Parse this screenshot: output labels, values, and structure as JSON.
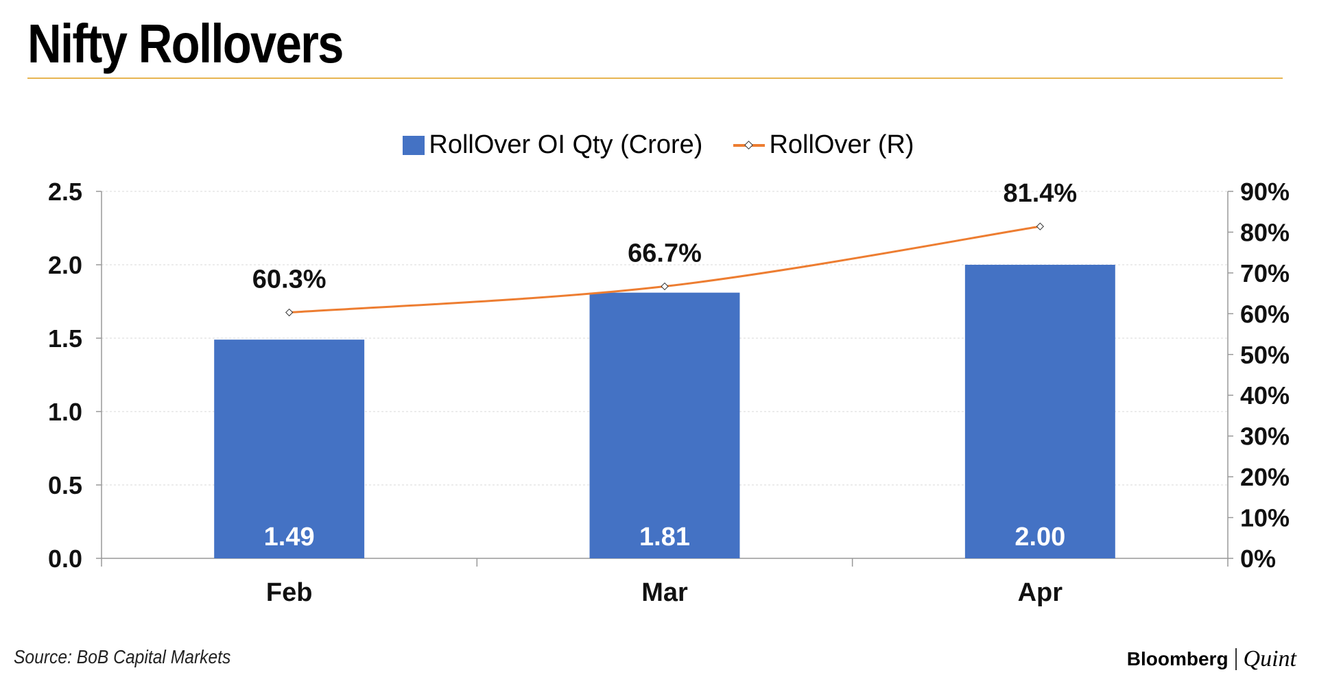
{
  "title": "Nifty Rollovers",
  "source": "Source: BoB Capital Markets",
  "brand": {
    "primary": "Bloomberg",
    "secondary": "Quint"
  },
  "colors": {
    "bar": "#4472c4",
    "line": "#ed7d31",
    "rule": "#e7b451",
    "grid": "#d9d9d9",
    "axis": "#999999"
  },
  "legend": {
    "bar_label": "RollOver OI Qty (Crore)",
    "line_label": "RollOver (R)"
  },
  "chart_data": {
    "type": "bar",
    "categories": [
      "Feb",
      "Mar",
      "Apr"
    ],
    "series": [
      {
        "name": "RollOver OI Qty (Crore)",
        "type": "bar",
        "axis": "left",
        "values": [
          1.49,
          1.81,
          2.0
        ],
        "labels": [
          "1.49",
          "1.81",
          "2.00"
        ]
      },
      {
        "name": "RollOver (R)",
        "type": "line",
        "axis": "right",
        "values": [
          60.3,
          66.7,
          81.4
        ],
        "labels": [
          "60.3%",
          "66.7%",
          "81.4%"
        ]
      }
    ],
    "ylim_left": [
      0,
      2.5
    ],
    "yticks_left": [
      "0.0",
      "0.5",
      "1.0",
      "1.5",
      "2.0",
      "2.5"
    ],
    "ylim_right": [
      0,
      90
    ],
    "yticks_right": [
      "0%",
      "10%",
      "20%",
      "30%",
      "40%",
      "50%",
      "60%",
      "70%",
      "80%",
      "90%"
    ],
    "grid": true,
    "legend_position": "top-center"
  }
}
